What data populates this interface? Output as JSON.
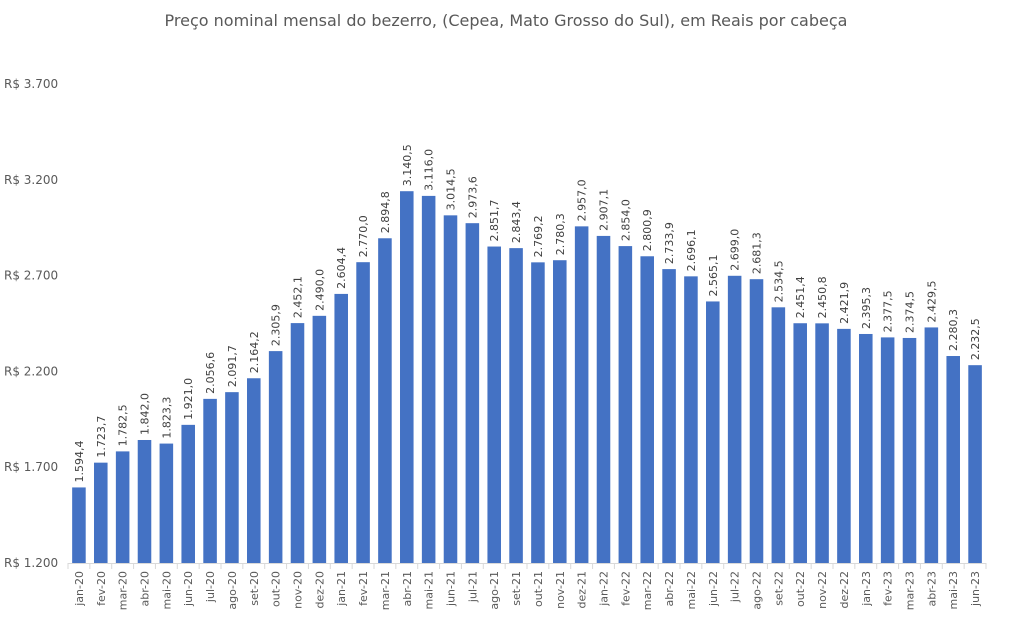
{
  "chart_data": {
    "type": "bar",
    "title": "Preço nominal mensal do bezerro, (Cepea, Mato Grosso do Sul), em Reais por cabeça",
    "xlabel": "",
    "ylabel": "",
    "ylim": [
      1200,
      3700
    ],
    "yticks": [
      1200,
      1700,
      2200,
      2700,
      3200,
      3700
    ],
    "ytick_labels": [
      "R$ 1.200",
      "R$ 1.700",
      "R$ 2.200",
      "R$ 2.700",
      "R$ 3.200",
      "R$ 3.700"
    ],
    "grid": false,
    "legend": "none",
    "bar_color": "#4472C4",
    "categories": [
      "jan-20",
      "fev-20",
      "mar-20",
      "abr-20",
      "mai-20",
      "jun-20",
      "jul-20",
      "ago-20",
      "set-20",
      "out-20",
      "nov-20",
      "dez-20",
      "jan-21",
      "fev-21",
      "mar-21",
      "abr-21",
      "mai-21",
      "jun-21",
      "jul-21",
      "ago-21",
      "set-21",
      "out-21",
      "nov-21",
      "dez-21",
      "jan-22",
      "fev-22",
      "mar-22",
      "abr-22",
      "mai-22",
      "jun-22",
      "jul-22",
      "ago-22",
      "set-22",
      "out-22",
      "nov-22",
      "dez-22",
      "jan-23",
      "fev-23",
      "mar-23",
      "abr-23",
      "mai-23",
      "jun-23"
    ],
    "values": [
      1594.4,
      1723.7,
      1782.5,
      1842.0,
      1823.3,
      1921.0,
      2056.6,
      2091.7,
      2164.2,
      2305.9,
      2452.1,
      2490.0,
      2604.4,
      2770.0,
      2894.8,
      3140.5,
      3116.0,
      3014.5,
      2973.6,
      2851.7,
      2843.4,
      2769.2,
      2780.3,
      2957.0,
      2907.1,
      2854.0,
      2800.9,
      2733.9,
      2696.1,
      2565.1,
      2699.0,
      2681.3,
      2534.5,
      2451.4,
      2450.8,
      2421.9,
      2395.3,
      2377.5,
      2374.5,
      2429.5,
      2280.3,
      2232.5
    ],
    "data_labels": [
      "1.594,4",
      "1.723,7",
      "1.782,5",
      "1.842,0",
      "1.823,3",
      "1.921,0",
      "2.056,6",
      "2.091,7",
      "2.164,2",
      "2.305,9",
      "2.452,1",
      "2.490,0",
      "2.604,4",
      "2.770,0",
      "2.894,8",
      "3.140,5",
      "3.116,0",
      "3.014,5",
      "2.973,6",
      "2.851,7",
      "2.843,4",
      "2.769,2",
      "2.780,3",
      "2.957,0",
      "2.907,1",
      "2.854,0",
      "2.800,9",
      "2.733,9",
      "2.696,1",
      "2.565,1",
      "2.699,0",
      "2.681,3",
      "2.534,5",
      "2.451,4",
      "2.450,8",
      "2.421,9",
      "2.395,3",
      "2.377,5",
      "2.374,5",
      "2.429,5",
      "2.280,3",
      "2.232,5"
    ]
  }
}
